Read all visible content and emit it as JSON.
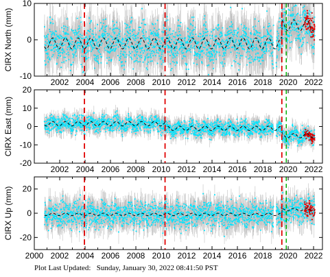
{
  "chart_data": [
    {
      "type": "scatter",
      "ylabel": "CIRX North (mm)",
      "xlim": [
        2000,
        2022.7
      ],
      "ylim": [
        -10,
        10
      ],
      "yticks": [
        -10,
        0,
        10
      ],
      "xticks": [
        "2002",
        "2004",
        "2006",
        "2008",
        "2010",
        "2012",
        "2014",
        "2016",
        "2018",
        "2020",
        "2022"
      ],
      "show_xtick_labels": true,
      "offset_lines_red": [
        2003.95,
        2010.3,
        2019.5
      ],
      "offset_lines_green": [
        2019.85
      ],
      "data_span": [
        2000.8,
        2022.1
      ],
      "model": {
        "mean_segments": [
          [
            2000.8,
            2019.5,
            -1.0
          ],
          [
            2019.5,
            2022.1,
            4.0
          ]
        ],
        "annual_amplitude": 1.5
      },
      "scatter_sd": 2.8,
      "colors": {
        "errorbars": "#b0b0b0",
        "points": "#00e5ff",
        "model": "#000000",
        "recent": "#e00000"
      }
    },
    {
      "type": "scatter",
      "ylabel": "CIRX East (mm)",
      "xlim": [
        2000,
        2022.7
      ],
      "ylim": [
        -20,
        20
      ],
      "yticks": [
        -20,
        -10,
        0,
        10,
        20
      ],
      "xticks": [
        "2002",
        "2004",
        "2006",
        "2008",
        "2010",
        "2012",
        "2014",
        "2016",
        "2018",
        "2020",
        "2022"
      ],
      "show_xtick_labels": true,
      "offset_lines_red": [
        2003.95,
        2010.3,
        2019.5
      ],
      "offset_lines_green": [
        2019.85
      ],
      "data_span": [
        2000.8,
        2022.1
      ],
      "model": {
        "mean_segments": [
          [
            2000.8,
            2010.3,
            1.5
          ],
          [
            2010.3,
            2019.5,
            -1.0
          ],
          [
            2019.5,
            2022.1,
            -5.0
          ]
        ],
        "annual_amplitude": 1.2
      },
      "scatter_sd": 2.2,
      "colors": {
        "errorbars": "#b0b0b0",
        "points": "#00e5ff",
        "model": "#000000",
        "recent": "#e00000"
      }
    },
    {
      "type": "scatter",
      "ylabel": "CIRX Up (mm)",
      "xlim": [
        2000,
        2022.7
      ],
      "ylim": [
        -30,
        30
      ],
      "yticks": [
        -20,
        0,
        20
      ],
      "xticks": [
        "2000",
        "2002",
        "2004",
        "2006",
        "2008",
        "2010",
        "2012",
        "2014",
        "2016",
        "2018",
        "2020",
        "2022"
      ],
      "show_xtick_labels": true,
      "offset_lines_red": [
        2003.95,
        2010.3,
        2019.5
      ],
      "offset_lines_green": [
        2019.85
      ],
      "data_span": [
        2000.8,
        2022.1
      ],
      "model": {
        "mean_segments": [
          [
            2000.8,
            2019.5,
            -1.0
          ],
          [
            2019.5,
            2022.1,
            3.0
          ]
        ],
        "annual_amplitude": 1.0
      },
      "scatter_sd": 5.5,
      "colors": {
        "errorbars": "#b0b0b0",
        "points": "#00e5ff",
        "model": "#000000",
        "recent": "#e00000"
      }
    }
  ],
  "footer": {
    "text": "Plot Last Updated:   Sunday, January 30, 2022 08:41:50 PST"
  }
}
